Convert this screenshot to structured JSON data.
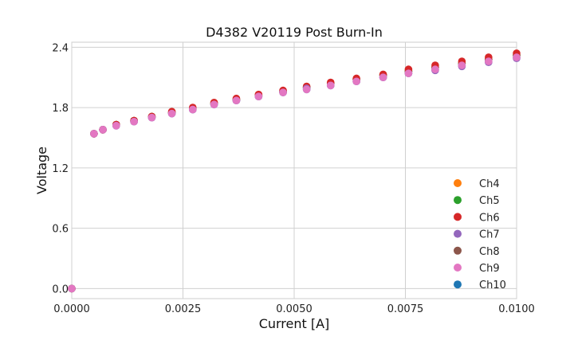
{
  "chart_data": {
    "type": "scatter",
    "title": "D4382 V20119 Post Burn-In",
    "xlabel": "Current [A]",
    "ylabel": "Voltage",
    "xlim": [
      0,
      0.01
    ],
    "ylim": [
      -0.1,
      2.45
    ],
    "xticks": [
      0,
      0.0025,
      0.005,
      0.0075,
      0.01
    ],
    "xtick_labels": [
      "0.0000",
      "0.0025",
      "0.0050",
      "0.0075",
      "0.0100"
    ],
    "yticks": [
      0,
      0.6,
      1.2,
      1.8,
      2.4
    ],
    "ytick_labels": [
      "0.0",
      "0.6",
      "1.2",
      "1.8",
      "2.4"
    ],
    "grid": true,
    "legend_position": "bottom-right",
    "x": [
      0,
      0.0005,
      0.0007,
      0.001,
      0.0014,
      0.0018,
      0.00225,
      0.00272,
      0.0032,
      0.0037,
      0.0042,
      0.00475,
      0.00528,
      0.00582,
      0.0064,
      0.007,
      0.00757,
      0.00817,
      0.00877,
      0.00937,
      0.01
    ],
    "series": [
      {
        "name": "Ch4",
        "color": "#ff7f0e",
        "values": [
          0,
          1.54,
          1.58,
          1.63,
          1.67,
          1.71,
          1.75,
          1.79,
          1.84,
          1.88,
          1.92,
          1.96,
          2.0,
          2.04,
          2.08,
          2.12,
          2.16,
          2.2,
          2.24,
          2.28,
          2.32
        ]
      },
      {
        "name": "Ch5",
        "color": "#2ca02c",
        "values": [
          0,
          1.54,
          1.58,
          1.63,
          1.67,
          1.71,
          1.75,
          1.79,
          1.84,
          1.88,
          1.92,
          1.96,
          2.0,
          2.04,
          2.08,
          2.12,
          2.16,
          2.2,
          2.24,
          2.28,
          2.32
        ]
      },
      {
        "name": "Ch6",
        "color": "#d62728",
        "values": [
          0,
          1.54,
          1.58,
          1.63,
          1.67,
          1.71,
          1.76,
          1.8,
          1.85,
          1.89,
          1.93,
          1.97,
          2.01,
          2.05,
          2.09,
          2.13,
          2.18,
          2.22,
          2.26,
          2.3,
          2.34
        ]
      },
      {
        "name": "Ch7",
        "color": "#9467bd",
        "values": [
          0,
          1.54,
          1.58,
          1.62,
          1.66,
          1.7,
          1.74,
          1.78,
          1.83,
          1.87,
          1.91,
          1.95,
          1.99,
          2.02,
          2.06,
          2.1,
          2.14,
          2.17,
          2.21,
          2.25,
          2.29
        ]
      },
      {
        "name": "Ch8",
        "color": "#8c564b",
        "values": [
          0,
          1.54,
          1.58,
          1.63,
          1.67,
          1.71,
          1.75,
          1.79,
          1.84,
          1.88,
          1.92,
          1.96,
          2.0,
          2.04,
          2.08,
          2.12,
          2.16,
          2.2,
          2.24,
          2.28,
          2.32
        ]
      },
      {
        "name": "Ch9",
        "color": "#e377c2",
        "values": [
          0,
          1.54,
          1.58,
          1.62,
          1.66,
          1.7,
          1.74,
          1.78,
          1.83,
          1.87,
          1.91,
          1.95,
          1.98,
          2.02,
          2.06,
          2.1,
          2.14,
          2.18,
          2.22,
          2.26,
          2.3
        ]
      },
      {
        "name": "Ch10",
        "color": "#1f77b4",
        "values": [
          0,
          1.54,
          1.58,
          1.62,
          1.66,
          1.7,
          1.74,
          1.78,
          1.83,
          1.87,
          1.91,
          1.95,
          1.98,
          2.02,
          2.06,
          2.1,
          2.14,
          2.18,
          2.22,
          2.26,
          2.3
        ]
      }
    ],
    "draw_order": [
      "Ch4",
      "Ch5",
      "Ch10",
      "Ch8",
      "Ch6",
      "Ch7",
      "Ch9"
    ]
  }
}
